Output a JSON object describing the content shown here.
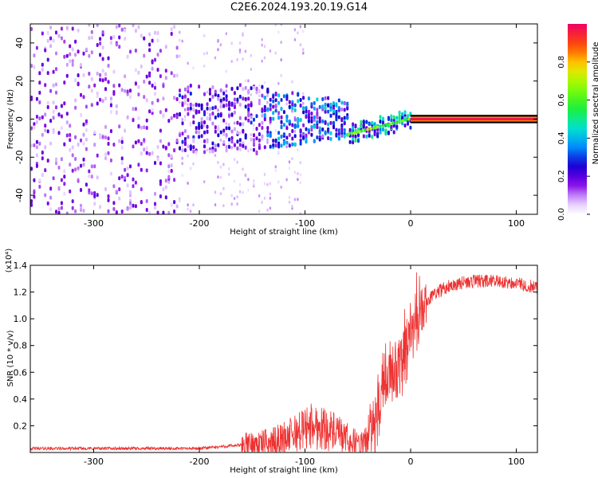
{
  "title": "C2E6.2024.193.20.19.G14",
  "chart_data": [
    {
      "type": "heatmap",
      "xlabel": "Height of straight line (km)",
      "ylabel": "Frequency (Hz)",
      "xlim": [
        -360,
        120
      ],
      "ylim": [
        -50,
        50
      ],
      "xticks": [
        -300,
        -200,
        -100,
        0,
        100
      ],
      "yticks": [
        -40,
        -20,
        0,
        20,
        40
      ],
      "colorbar": {
        "label": "Normalized spectral amplitude",
        "range": [
          0.0,
          1.0
        ],
        "ticks": [
          "0.0",
          "0.2",
          "0.4",
          "0.6",
          "0.8"
        ]
      },
      "regions": [
        {
          "x_range": [
            -360,
            -220
          ],
          "freq_range": [
            -50,
            50
          ],
          "amplitude": "0.0-0.2 scattered"
        },
        {
          "x_range": [
            -220,
            -60
          ],
          "freq_range": [
            -20,
            20
          ],
          "amplitude": "0.1-0.5 band"
        },
        {
          "x_range": [
            -60,
            0
          ],
          "freq_center": [
            -8,
            0
          ],
          "amplitude": "0.3-0.7"
        },
        {
          "x_range": [
            0,
            120
          ],
          "freq_center": 0,
          "amplitude": "0.8-1.0 narrow line"
        }
      ]
    },
    {
      "type": "line",
      "xlabel": "Height of straight line (km)",
      "ylabel": "SNR (10 * v/v)",
      "y_multiplier": "(x10⁴)",
      "xlim": [
        -360,
        120
      ],
      "ylim": [
        0,
        1.4
      ],
      "xticks": [
        -300,
        -200,
        -100,
        0,
        100
      ],
      "yticks": [
        "0.2",
        "0.4",
        "0.6",
        "0.8",
        "1.0",
        "1.2",
        "1.4"
      ],
      "series": [
        {
          "color": "#ee3333",
          "x": [
            -360,
            -320,
            -280,
            -240,
            -200,
            -170,
            -150,
            -130,
            -110,
            -95,
            -80,
            -65,
            -55,
            -45,
            -38,
            -32,
            -28,
            -20,
            -12,
            -5,
            0,
            5,
            10,
            15,
            20,
            30,
            40,
            60,
            80,
            95,
            110,
            120
          ],
          "y": [
            0.03,
            0.03,
            0.03,
            0.03,
            0.03,
            0.05,
            0.06,
            0.08,
            0.14,
            0.2,
            0.18,
            0.12,
            0.08,
            0.06,
            0.12,
            0.25,
            0.45,
            0.6,
            0.6,
            0.7,
            0.9,
            0.95,
            1.0,
            1.1,
            1.18,
            1.22,
            1.26,
            1.28,
            1.28,
            1.27,
            1.25,
            1.23
          ]
        }
      ]
    }
  ]
}
